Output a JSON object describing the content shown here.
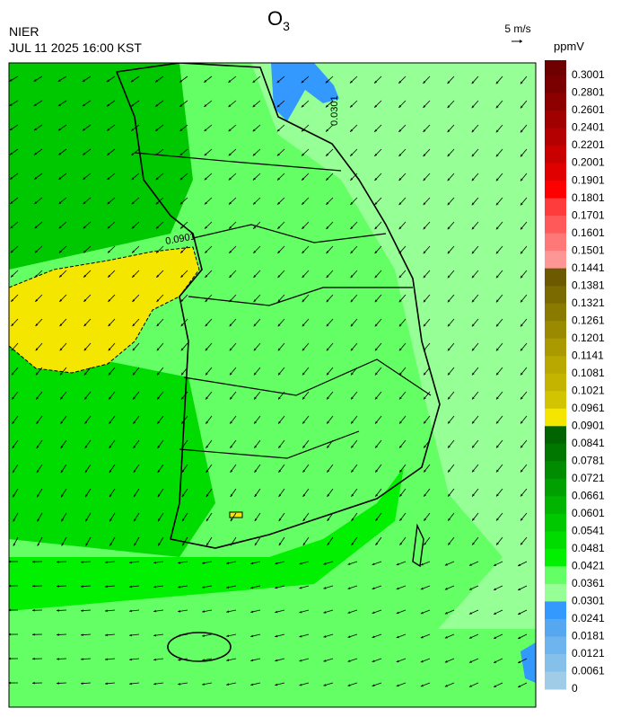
{
  "header": {
    "title": "O",
    "title_subscript": "3",
    "agency": "NIER",
    "datetime": "JUL 11 2025 16:00 KST",
    "wind_scale": "5 m/s",
    "unit": "ppmV"
  },
  "map": {
    "contour_labels": [
      "0.0901",
      "0.0301"
    ]
  },
  "colorbar": {
    "labels": [
      0.3001,
      0.2801,
      0.2601,
      0.2401,
      0.2201,
      0.2001,
      0.1901,
      0.1801,
      0.1701,
      0.1601,
      0.1501,
      0.1441,
      0.1381,
      0.1321,
      0.1261,
      0.1201,
      0.1141,
      0.1081,
      0.1021,
      0.0961,
      0.0901,
      0.0841,
      0.0781,
      0.0721,
      0.0661,
      0.0601,
      0.0541,
      0.0481,
      0.0421,
      0.0361,
      0.0301,
      0.0241,
      0.0181,
      0.0121,
      0.0061,
      0
    ],
    "colors": [
      "#6e0000",
      "#7a0000",
      "#8c0000",
      "#a00000",
      "#b40000",
      "#c80000",
      "#e00000",
      "#ff0000",
      "#ff3c3c",
      "#ff5a5a",
      "#ff7878",
      "#ff9696",
      "#6b5a00",
      "#7a6a00",
      "#8a7a00",
      "#9a8a00",
      "#aa9a00",
      "#b8a800",
      "#c4b400",
      "#d2c400",
      "#f5e600",
      "#006400",
      "#007800",
      "#008c00",
      "#00a000",
      "#00b400",
      "#00c800",
      "#00dc00",
      "#00f000",
      "#64ff64",
      "#96ff96",
      "#3399ff",
      "#55a8f0",
      "#6eb4ee",
      "#84c0ea",
      "#a0cce8"
    ]
  }
}
